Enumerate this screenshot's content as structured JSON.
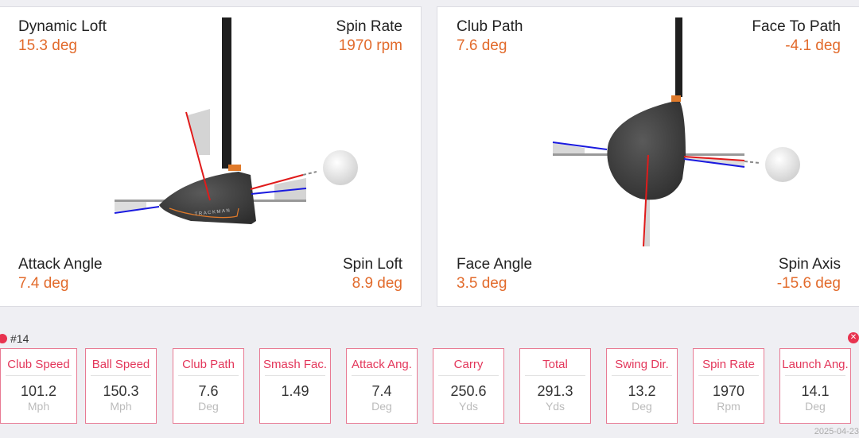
{
  "side_view": {
    "dynamic_loft": {
      "label": "Dynamic Loft",
      "value": "15.3 deg"
    },
    "spin_rate": {
      "label": "Spin Rate",
      "value": "1970 rpm"
    },
    "attack_angle": {
      "label": "Attack Angle",
      "value": "7.4 deg"
    },
    "spin_loft": {
      "label": "Spin Loft",
      "value": "8.9 deg"
    },
    "club_brand": "TRACKMAN"
  },
  "top_view": {
    "club_path": {
      "label": "Club Path",
      "value": "7.6 deg"
    },
    "face_to_path": {
      "label": "Face To Path",
      "value": "-4.1 deg"
    },
    "face_angle": {
      "label": "Face Angle",
      "value": "3.5 deg"
    },
    "spin_axis": {
      "label": "Spin Axis",
      "value": "-15.6 deg"
    }
  },
  "shot": {
    "id": "#14",
    "close_icon": "close-icon",
    "date": "2025-04-23"
  },
  "colors": {
    "accent": "#e26b2c",
    "card_title": "#e3365a",
    "path_line": "#1a1adf",
    "face_line": "#e01b1b"
  },
  "cards": [
    {
      "title": "Club Speed",
      "value": "101.2",
      "unit": "Mph"
    },
    {
      "title": "Ball Speed",
      "value": "150.3",
      "unit": "Mph"
    },
    {
      "title": "Club Path",
      "value": "7.6",
      "unit": "Deg"
    },
    {
      "title": "Smash Fac.",
      "value": "1.49",
      "unit": ""
    },
    {
      "title": "Attack Ang.",
      "value": "7.4",
      "unit": "Deg"
    },
    {
      "title": "Carry",
      "value": "250.6",
      "unit": "Yds"
    },
    {
      "title": "Total",
      "value": "291.3",
      "unit": "Yds"
    },
    {
      "title": "Swing Dir.",
      "value": "13.2",
      "unit": "Deg"
    },
    {
      "title": "Spin Rate",
      "value": "1970",
      "unit": "Rpm"
    },
    {
      "title": "Launch Ang.",
      "value": "14.1",
      "unit": "Deg"
    }
  ]
}
